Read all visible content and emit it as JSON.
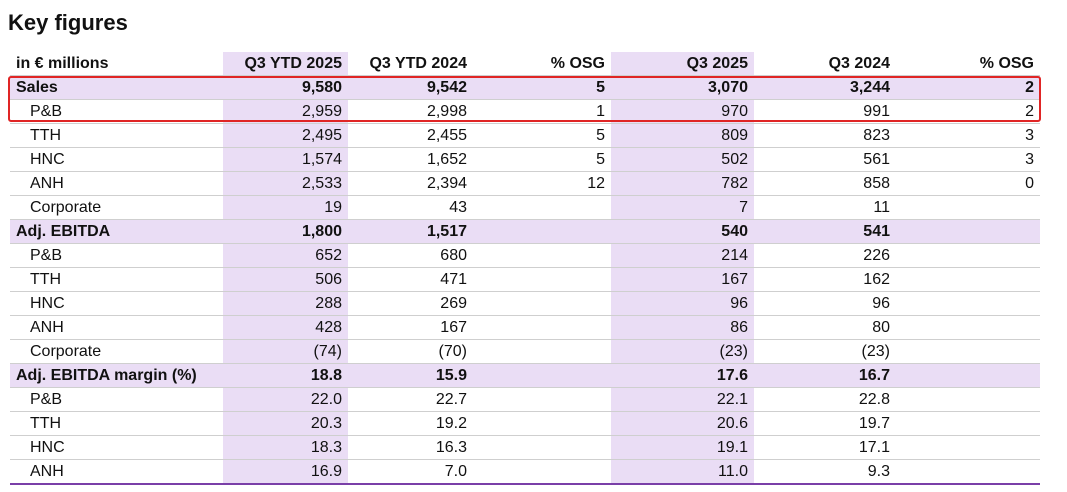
{
  "title": "Key figures",
  "columns": [
    "in € millions",
    "Q3 YTD 2025",
    "Q3 YTD 2024",
    "% OSG",
    "Q3 2025",
    "Q3 2024",
    "% OSG"
  ],
  "rows": [
    {
      "label": "Sales",
      "bold": true,
      "section": true,
      "indent": false,
      "values": [
        "9,580",
        "9,542",
        "5",
        "3,070",
        "3,244",
        "2"
      ]
    },
    {
      "label": "P&B",
      "bold": false,
      "section": false,
      "indent": true,
      "values": [
        "2,959",
        "2,998",
        "1",
        "970",
        "991",
        "2"
      ]
    },
    {
      "label": "TTH",
      "bold": false,
      "section": false,
      "indent": true,
      "values": [
        "2,495",
        "2,455",
        "5",
        "809",
        "823",
        "3"
      ]
    },
    {
      "label": "HNC",
      "bold": false,
      "section": false,
      "indent": true,
      "values": [
        "1,574",
        "1,652",
        "5",
        "502",
        "561",
        "3"
      ]
    },
    {
      "label": "ANH",
      "bold": false,
      "section": false,
      "indent": true,
      "values": [
        "2,533",
        "2,394",
        "12",
        "782",
        "858",
        "0"
      ]
    },
    {
      "label": "Corporate",
      "bold": false,
      "section": false,
      "indent": true,
      "values": [
        "19",
        "43",
        "",
        "7",
        "11",
        ""
      ]
    },
    {
      "label": "Adj. EBITDA",
      "bold": true,
      "section": true,
      "indent": false,
      "values": [
        "1,800",
        "1,517",
        "",
        "540",
        "541",
        ""
      ]
    },
    {
      "label": "P&B",
      "bold": false,
      "section": false,
      "indent": true,
      "values": [
        "652",
        "680",
        "",
        "214",
        "226",
        ""
      ]
    },
    {
      "label": "TTH",
      "bold": false,
      "section": false,
      "indent": true,
      "values": [
        "506",
        "471",
        "",
        "167",
        "162",
        ""
      ]
    },
    {
      "label": "HNC",
      "bold": false,
      "section": false,
      "indent": true,
      "values": [
        "288",
        "269",
        "",
        "96",
        "96",
        ""
      ]
    },
    {
      "label": "ANH",
      "bold": false,
      "section": false,
      "indent": true,
      "values": [
        "428",
        "167",
        "",
        "86",
        "80",
        ""
      ]
    },
    {
      "label": "Corporate",
      "bold": false,
      "section": false,
      "indent": true,
      "values": [
        "(74)",
        "(70)",
        "",
        "(23)",
        "(23)",
        ""
      ]
    },
    {
      "label": "Adj. EBITDA margin (%)",
      "bold": true,
      "section": true,
      "indent": false,
      "values": [
        "18.8",
        "15.9",
        "",
        "17.6",
        "16.7",
        ""
      ]
    },
    {
      "label": "P&B",
      "bold": false,
      "section": false,
      "indent": true,
      "values": [
        "22.0",
        "22.7",
        "",
        "22.1",
        "22.8",
        ""
      ]
    },
    {
      "label": "TTH",
      "bold": false,
      "section": false,
      "indent": true,
      "values": [
        "20.3",
        "19.2",
        "",
        "20.6",
        "19.7",
        ""
      ]
    },
    {
      "label": "HNC",
      "bold": false,
      "section": false,
      "indent": true,
      "values": [
        "18.3",
        "16.3",
        "",
        "19.1",
        "17.1",
        ""
      ]
    },
    {
      "label": "ANH",
      "bold": false,
      "section": false,
      "indent": true,
      "values": [
        "16.9",
        "7.0",
        "",
        "11.0",
        "9.3",
        ""
      ]
    }
  ],
  "colors": {
    "highlight": "#eaddf5",
    "box": "#e02525",
    "rule": "#7a3fa8"
  }
}
